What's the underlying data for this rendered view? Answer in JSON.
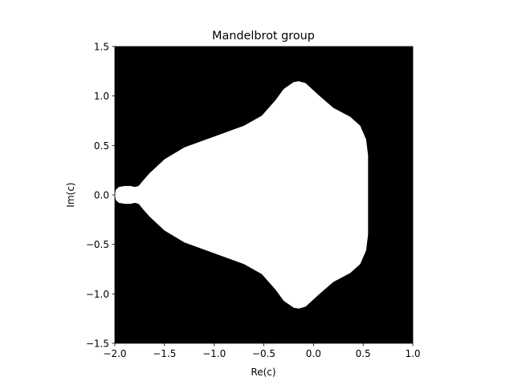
{
  "chart_data": {
    "type": "heatmap",
    "title": "Mandelbrot group",
    "xlabel": "Re(c)",
    "ylabel": "Im(c)",
    "xlim": [
      -2.0,
      1.0
    ],
    "ylim": [
      -1.5,
      1.5
    ],
    "xticks": [
      -2.0,
      -1.5,
      -1.0,
      -0.5,
      0.0,
      0.5,
      1.0
    ],
    "yticks": [
      -1.5,
      -1.0,
      -0.5,
      0.0,
      0.5,
      1.0,
      1.5
    ],
    "xtick_labels": [
      "−2.0",
      "−1.5",
      "−1.0",
      "−0.5",
      "0.0",
      "0.5",
      "1.0"
    ],
    "ytick_labels": [
      "−1.5",
      "−1.0",
      "−0.5",
      "0.0",
      "0.5",
      "1.0",
      "1.5"
    ],
    "grid": false,
    "background_color": "#000000",
    "region_color": "#ffffff",
    "region_boundary_upper": [
      [
        -2.0,
        0.0
      ],
      [
        -1.99,
        0.05
      ],
      [
        -1.96,
        0.08
      ],
      [
        -1.9,
        0.09
      ],
      [
        -1.84,
        0.09
      ],
      [
        -1.8,
        0.08
      ],
      [
        -1.76,
        0.09
      ],
      [
        -1.72,
        0.14
      ],
      [
        -1.65,
        0.22
      ],
      [
        -1.5,
        0.36
      ],
      [
        -1.3,
        0.48
      ],
      [
        -1.0,
        0.59
      ],
      [
        -0.7,
        0.7
      ],
      [
        -0.52,
        0.8
      ],
      [
        -0.38,
        0.96
      ],
      [
        -0.3,
        1.07
      ],
      [
        -0.2,
        1.14
      ],
      [
        -0.15,
        1.15
      ],
      [
        -0.08,
        1.13
      ],
      [
        0.05,
        1.01
      ],
      [
        0.2,
        0.88
      ],
      [
        0.37,
        0.79
      ],
      [
        0.47,
        0.7
      ],
      [
        0.53,
        0.56
      ],
      [
        0.55,
        0.4
      ],
      [
        0.55,
        0.0
      ]
    ],
    "region_boundary_lower": [
      [
        0.55,
        -0.4
      ],
      [
        0.53,
        -0.56
      ],
      [
        0.47,
        -0.7
      ],
      [
        0.37,
        -0.79
      ],
      [
        0.2,
        -0.88
      ],
      [
        0.05,
        -1.01
      ],
      [
        -0.08,
        -1.13
      ],
      [
        -0.15,
        -1.15
      ],
      [
        -0.2,
        -1.14
      ],
      [
        -0.3,
        -1.07
      ],
      [
        -0.38,
        -0.96
      ],
      [
        -0.52,
        -0.8
      ],
      [
        -0.7,
        -0.7
      ],
      [
        -1.0,
        -0.59
      ],
      [
        -1.3,
        -0.48
      ],
      [
        -1.5,
        -0.36
      ],
      [
        -1.65,
        -0.22
      ],
      [
        -1.72,
        -0.14
      ],
      [
        -1.76,
        -0.09
      ],
      [
        -1.8,
        -0.08
      ],
      [
        -1.84,
        -0.09
      ],
      [
        -1.9,
        -0.09
      ],
      [
        -1.96,
        -0.08
      ],
      [
        -1.99,
        -0.05
      ],
      [
        -2.0,
        0.0
      ]
    ]
  }
}
